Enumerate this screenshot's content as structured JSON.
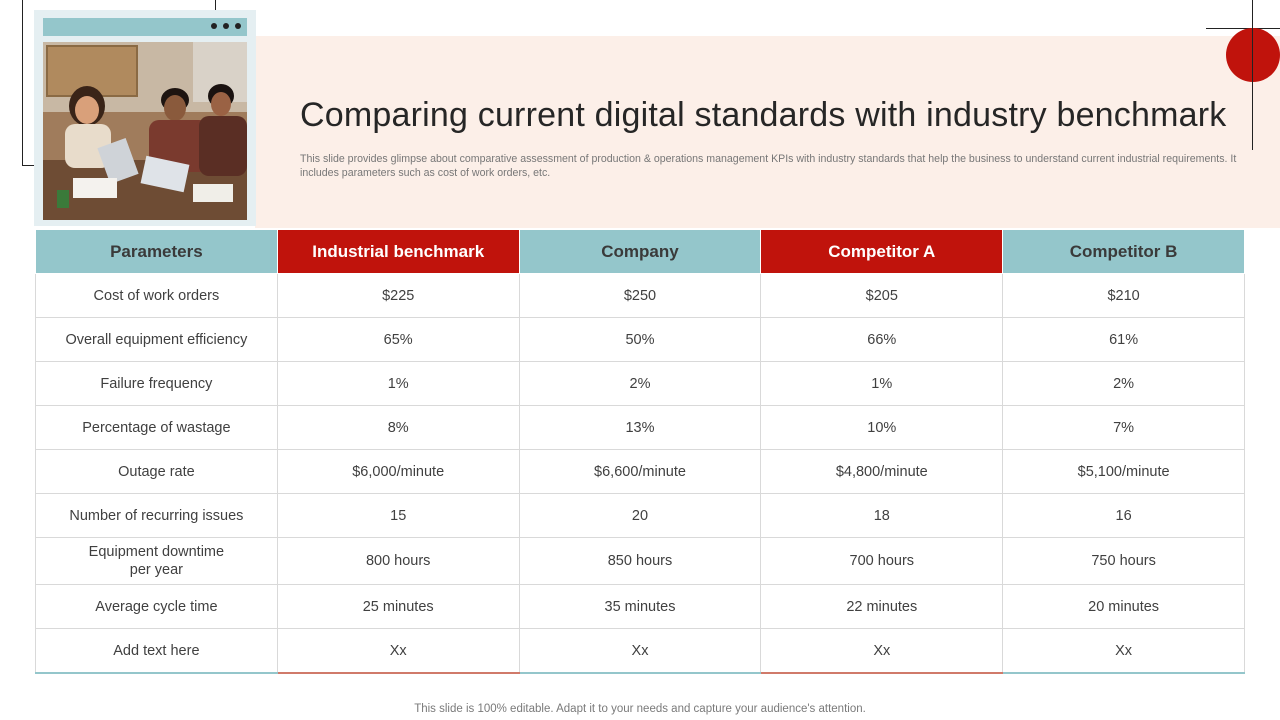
{
  "slide": {
    "title": "Comparing current digital standards with industry benchmark",
    "subtitle": "This slide provides glimpse about comparative assessment of production & operations management KPIs with industry standards that help the business to understand current industrial requirements. It includes parameters such as cost of work orders, etc.",
    "footer": "This slide is 100% editable. Adapt it to your needs and capture your audience's attention."
  },
  "colors": {
    "accent_red": "#c0130c",
    "accent_teal": "#94c6cb",
    "header_band": "#fcefe8"
  },
  "table": {
    "headers": [
      "Parameters",
      "Industrial benchmark",
      "Company",
      "Competitor A",
      "Competitor B"
    ],
    "rows": [
      [
        "Cost of work orders",
        "$225",
        "$250",
        "$205",
        "$210"
      ],
      [
        "Overall equipment efficiency",
        "65%",
        "50%",
        "66%",
        "61%"
      ],
      [
        "Failure frequency",
        "1%",
        "2%",
        "1%",
        "2%"
      ],
      [
        "Percentage of wastage",
        "8%",
        "13%",
        "10%",
        "7%"
      ],
      [
        "Outage rate",
        "$6,000/minute",
        "$6,600/minute",
        "$4,800/minute",
        "$5,100/minute"
      ],
      [
        "Number of recurring issues",
        "15",
        "20",
        "18",
        "16"
      ],
      [
        "Equipment downtime per year",
        "800 hours",
        "850 hours",
        "700 hours",
        "750 hours"
      ],
      [
        "Average  cycle time",
        "25 minutes",
        "35 minutes",
        "22 minutes",
        "20 minutes"
      ],
      [
        "Add text here",
        "Xx",
        "Xx",
        "Xx",
        "Xx"
      ]
    ]
  }
}
